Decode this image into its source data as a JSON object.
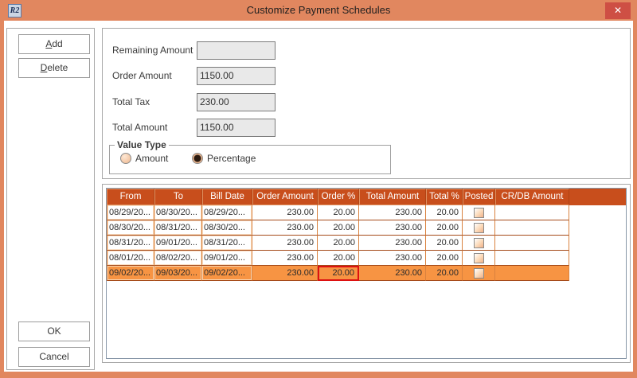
{
  "window": {
    "title": "Customize Payment Schedules",
    "icon_text": "R2",
    "close_glyph": "✕"
  },
  "sidebar": {
    "add": {
      "mnemonic": "A",
      "rest": "dd"
    },
    "delete": {
      "mnemonic": "D",
      "rest": "elete"
    },
    "ok_label": "OK",
    "cancel_label": "Cancel"
  },
  "form": {
    "fields": [
      {
        "label": "Remaining Amount",
        "value": ""
      },
      {
        "label": "Order Amount",
        "value": "1150.00"
      },
      {
        "label": "Total Tax",
        "value": "230.00"
      },
      {
        "label": "Total Amount",
        "value": "1150.00"
      }
    ],
    "value_type": {
      "legend": "Value Type",
      "options": [
        {
          "label": "Amount",
          "selected": false
        },
        {
          "label": "Percentage",
          "selected": true
        }
      ]
    }
  },
  "table": {
    "columns": [
      "From",
      "To",
      "Bill Date",
      "Order Amount",
      "Order %",
      "Total Amount",
      "Total %",
      "Posted",
      "CR/DB Amount"
    ],
    "rows": [
      {
        "from": "08/29/20...",
        "to": "08/30/20...",
        "bill_date": "08/29/20...",
        "order_amount": "230.00",
        "order_pct": "20.00",
        "total_amount": "230.00",
        "total_pct": "20.00",
        "posted": false,
        "crdb": ""
      },
      {
        "from": "08/30/20...",
        "to": "08/31/20...",
        "bill_date": "08/30/20...",
        "order_amount": "230.00",
        "order_pct": "20.00",
        "total_amount": "230.00",
        "total_pct": "20.00",
        "posted": false,
        "crdb": ""
      },
      {
        "from": "08/31/20...",
        "to": "09/01/20...",
        "bill_date": "08/31/20...",
        "order_amount": "230.00",
        "order_pct": "20.00",
        "total_amount": "230.00",
        "total_pct": "20.00",
        "posted": false,
        "crdb": ""
      },
      {
        "from": "08/01/20...",
        "to": "08/02/20...",
        "bill_date": "09/01/20...",
        "order_amount": "230.00",
        "order_pct": "20.00",
        "total_amount": "230.00",
        "total_pct": "20.00",
        "posted": false,
        "crdb": ""
      },
      {
        "from": "09/02/20...",
        "to": "09/03/20...",
        "bill_date": "09/02/20...",
        "order_amount": "230.00",
        "order_pct": "20.00",
        "total_amount": "230.00",
        "total_pct": "20.00",
        "posted": false,
        "crdb": ""
      }
    ],
    "selected_row_index": 4,
    "selected_cell": "order_pct"
  },
  "colors": {
    "titlebar": "#e1875f",
    "close_button": "#ce4f44",
    "table_header": "#c84e1c",
    "selected_row": "#f79443",
    "selected_cell_border": "#dd1111",
    "grid_vertical": "#d9823f",
    "grid_horizontal": "#a54b1a",
    "input_bg": "#e9e9e9"
  }
}
